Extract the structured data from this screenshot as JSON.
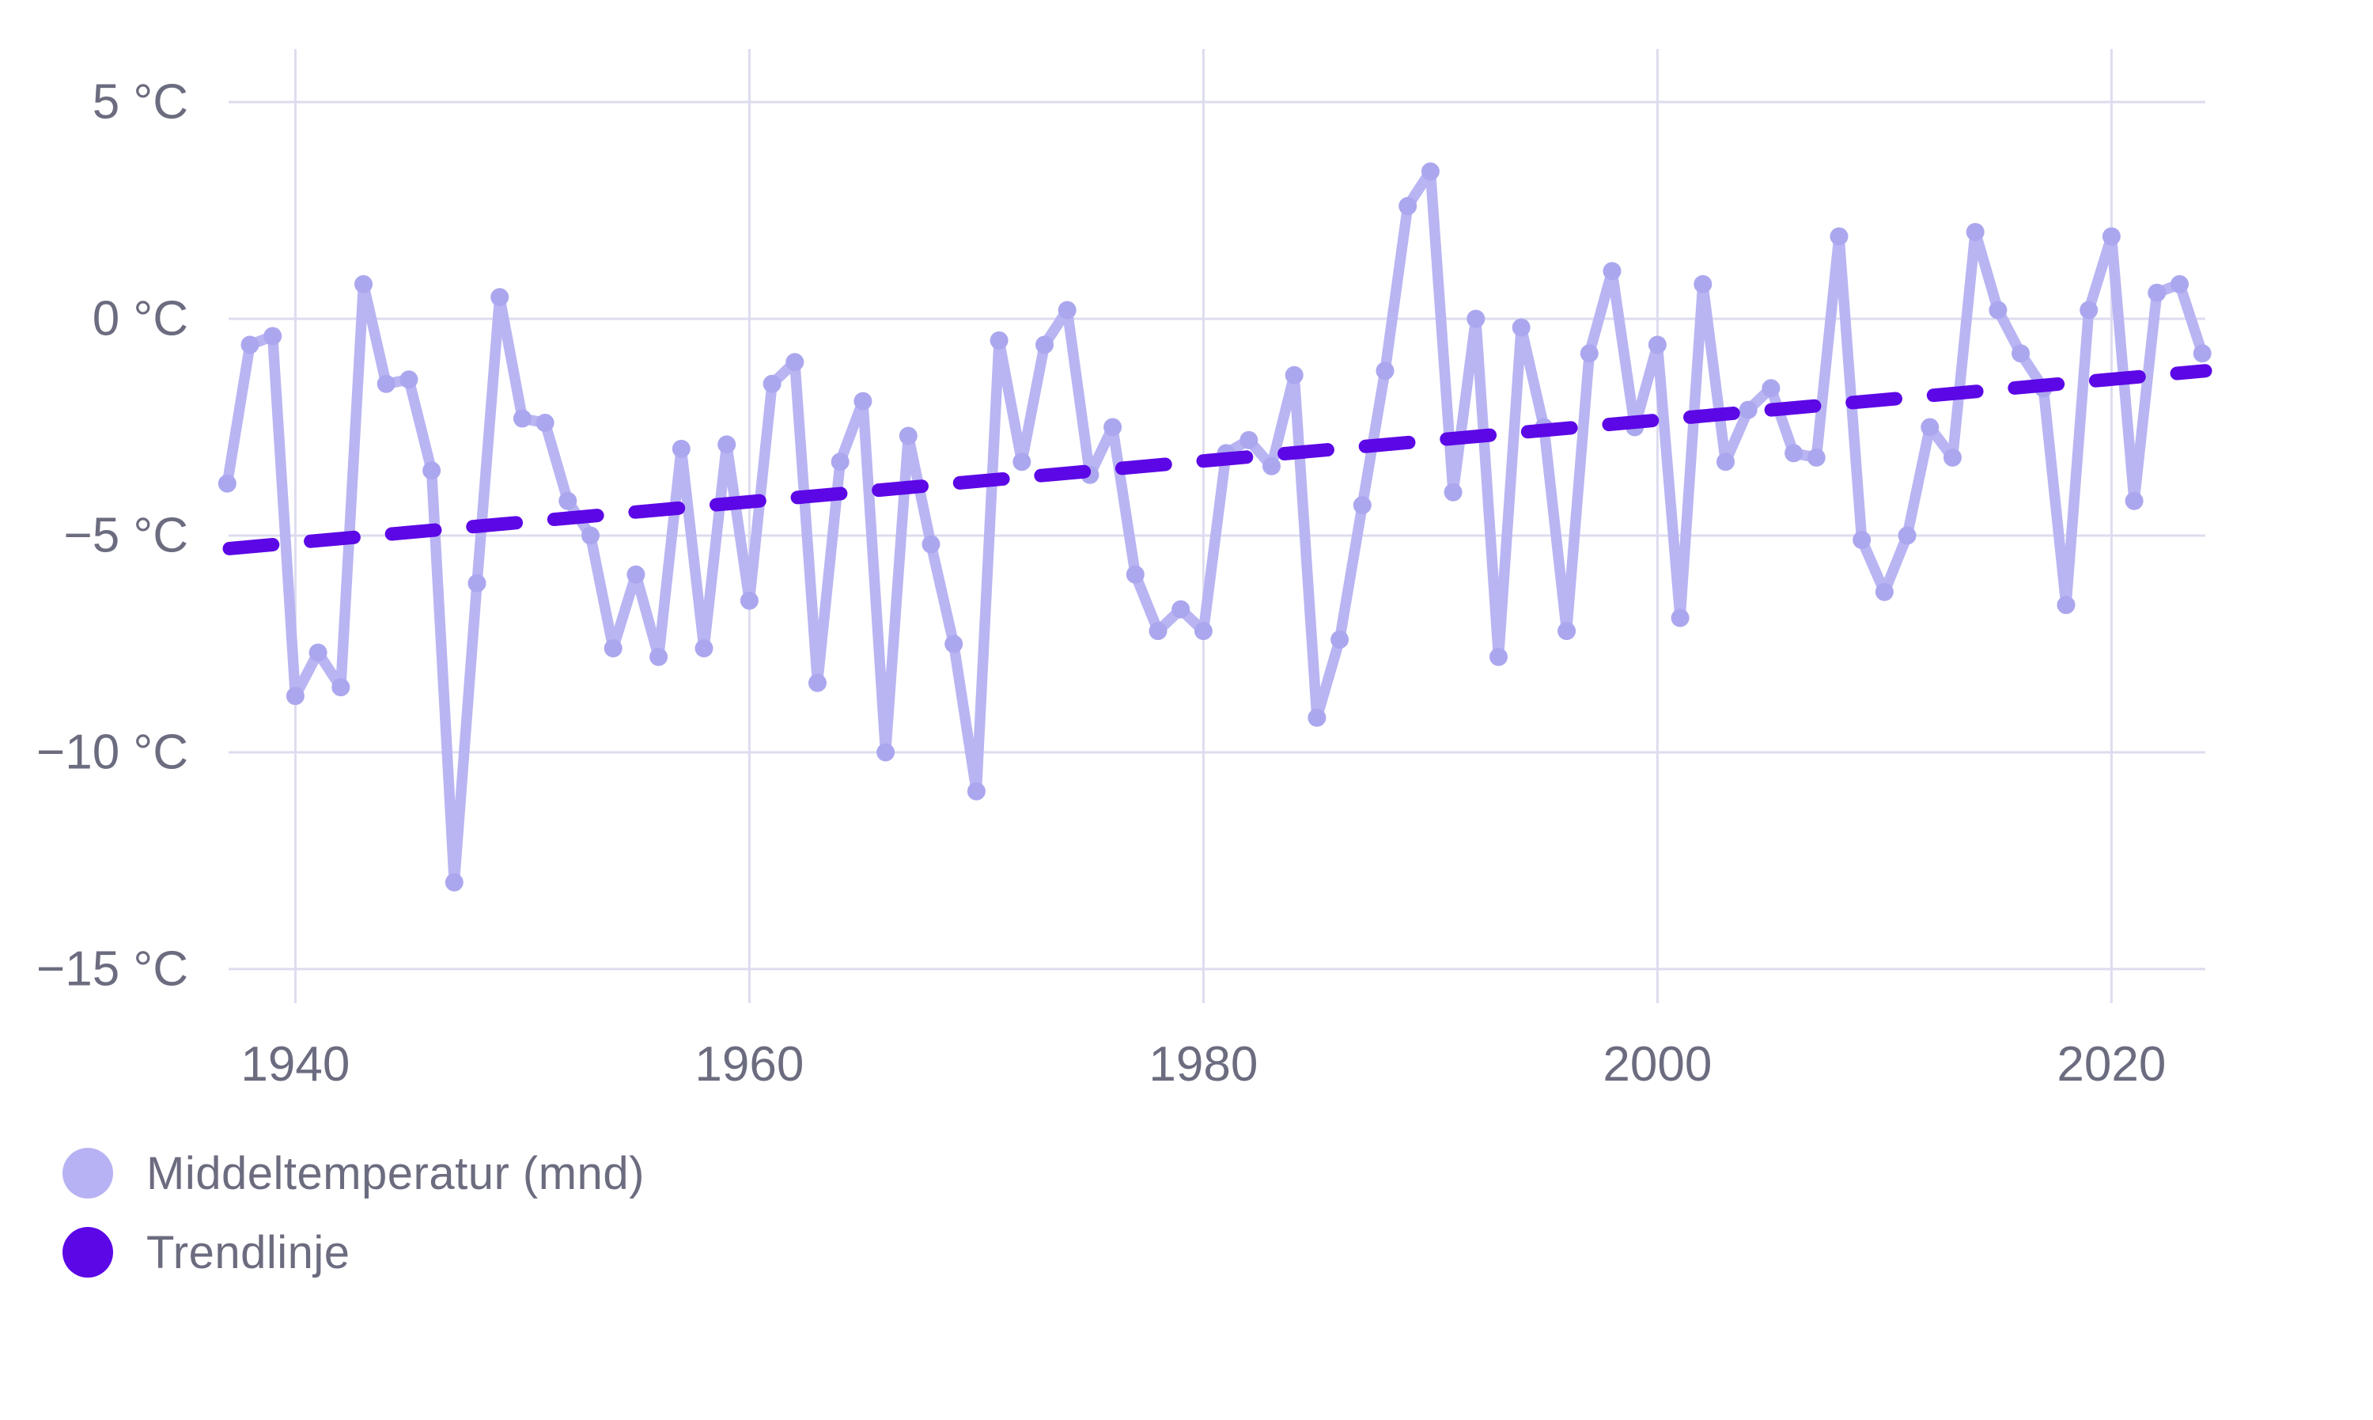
{
  "chart": {
    "legend": [
      {
        "label": "Middeltemperatur (mnd)",
        "color": "#b6b2f3"
      },
      {
        "label": "Trendlinje",
        "color": "#5c07e6"
      }
    ]
  },
  "chart_data": {
    "type": "line",
    "title": "",
    "xlabel": "",
    "ylabel": "",
    "grid": true,
    "legend_position": "bottom-left",
    "x": [
      1937,
      1938,
      1939,
      1940,
      1941,
      1942,
      1943,
      1944,
      1945,
      1946,
      1947,
      1948,
      1949,
      1950,
      1951,
      1952,
      1953,
      1954,
      1955,
      1956,
      1957,
      1958,
      1959,
      1960,
      1961,
      1962,
      1963,
      1964,
      1965,
      1966,
      1967,
      1968,
      1969,
      1970,
      1971,
      1972,
      1973,
      1974,
      1975,
      1976,
      1977,
      1978,
      1979,
      1980,
      1981,
      1982,
      1983,
      1984,
      1985,
      1986,
      1987,
      1988,
      1989,
      1990,
      1991,
      1992,
      1993,
      1994,
      1995,
      1996,
      1997,
      1998,
      1999,
      2000,
      2001,
      2002,
      2003,
      2004,
      2005,
      2006,
      2007,
      2008,
      2009,
      2010,
      2011,
      2012,
      2013,
      2014,
      2015,
      2016,
      2017,
      2018,
      2019,
      2020,
      2021,
      2022,
      2023,
      2024
    ],
    "series": [
      {
        "name": "Middeltemperatur (mnd)",
        "unit": "°C",
        "values": [
          -3.8,
          -0.6,
          -0.4,
          -8.7,
          -7.7,
          -8.5,
          0.8,
          -1.5,
          -1.4,
          -3.5,
          -13.0,
          -6.1,
          0.5,
          -2.3,
          -2.4,
          -4.2,
          -5.0,
          -7.6,
          -5.9,
          -7.8,
          -3.0,
          -7.6,
          -2.9,
          -6.5,
          -1.5,
          -1.0,
          -8.4,
          -3.3,
          -1.9,
          -10.0,
          -2.7,
          -5.2,
          -7.5,
          -10.9,
          -0.5,
          -3.3,
          -0.6,
          0.2,
          -3.6,
          -2.5,
          -5.9,
          -7.2,
          -6.7,
          -7.2,
          -3.1,
          -2.8,
          -3.4,
          -1.3,
          -9.2,
          -7.4,
          -4.3,
          -1.2,
          2.6,
          3.4,
          -4.0,
          0.0,
          -7.8,
          -0.2,
          -2.5,
          -7.2,
          -0.8,
          1.1,
          -2.5,
          -0.6,
          -6.9,
          0.8,
          -3.3,
          -2.1,
          -1.6,
          -3.1,
          -3.2,
          1.9,
          -5.1,
          -6.3,
          -5.0,
          -2.5,
          -3.2,
          2.0,
          0.2,
          -0.8,
          -1.6,
          -6.6,
          0.2,
          1.9,
          -4.2,
          0.6,
          0.8,
          -0.8
        ]
      },
      {
        "name": "Trendlinje",
        "unit": "°C",
        "style": "dashed",
        "trend": {
          "start_year": 1937,
          "start_value": -5.3,
          "end_year": 2024,
          "end_value": -1.2
        }
      }
    ],
    "yticks": [
      5,
      0,
      -5,
      -10,
      -15
    ],
    "ytick_labels": [
      "5 °C",
      "0 °C",
      "−5 °C",
      "−10 °C",
      "−15 °C"
    ],
    "xticks": [
      1940,
      1960,
      1980,
      2000,
      2020
    ],
    "xtick_labels": [
      "1940",
      "1960",
      "1980",
      "2000",
      "2020"
    ],
    "ylim": [
      -16,
      6.2
    ],
    "xlim": [
      1937,
      2024.2
    ]
  },
  "colors": {
    "series_line": "#b9b5f3",
    "series_dot": "#aba7ee",
    "trend": "#5c07e6",
    "axis_text": "#6c6c80",
    "gridline": "#dddcef",
    "background": "#ffffff"
  }
}
